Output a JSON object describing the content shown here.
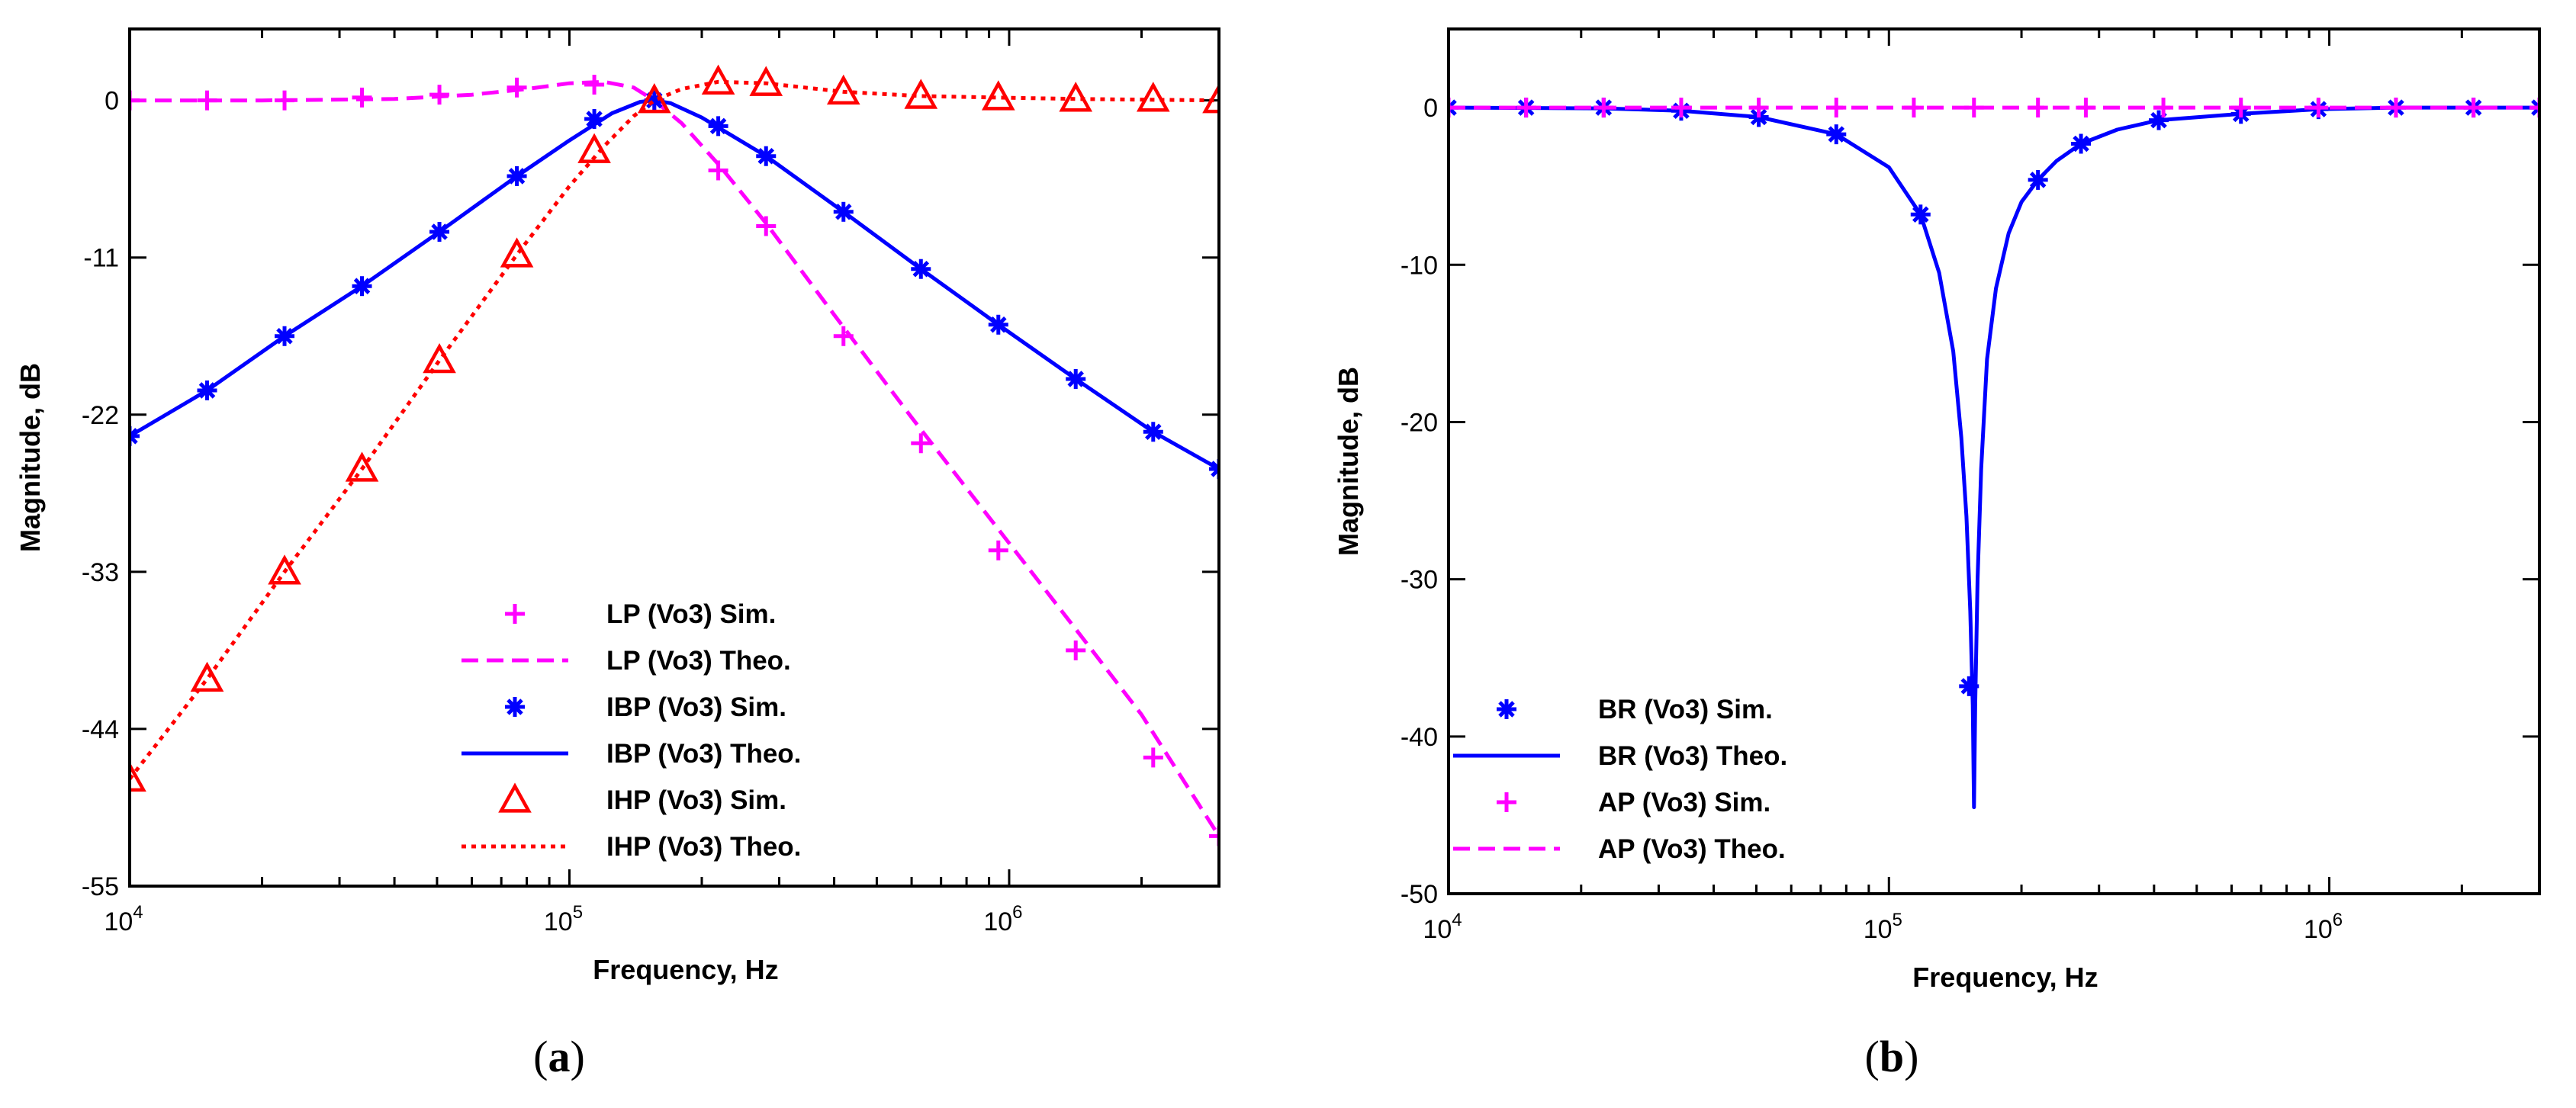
{
  "chart_data": [
    {
      "id": "a",
      "type": "line",
      "caption_letter": "a",
      "xlabel": "Frequency, Hz",
      "ylabel": "Magnitude, dB",
      "xscale": "log",
      "xlim": [
        10000,
        3000000
      ],
      "ylim": [
        -55,
        5
      ],
      "xticks": [
        {
          "value": 10000,
          "base": "10",
          "exp": "4"
        },
        {
          "value": 100000,
          "base": "10",
          "exp": "5"
        },
        {
          "value": 1000000,
          "base": "10",
          "exp": "6"
        }
      ],
      "yticks": [
        0,
        -11,
        -22,
        -33,
        -44,
        -55
      ],
      "ytick_labels": [
        "0",
        "-11",
        "-22",
        "-33",
        "-44",
        "-55"
      ],
      "legend_position": "bottom-center",
      "series": [
        {
          "name": "LP (Vo3) Sim.",
          "kind": "sim",
          "marker": "plus",
          "color": "#ff00ff",
          "x": [
            10000,
            15000,
            22500,
            33750,
            50625,
            75937,
            113906,
            156000,
            218000,
            280000,
            420000,
            630000,
            945000,
            1417000,
            2126000,
            3000000
          ],
          "y": [
            0,
            0,
            0,
            0.2,
            0.4,
            0.9,
            1.1,
            0,
            -4.9,
            -8.8,
            -16.5,
            -24,
            -31.5,
            -38.5,
            -46,
            -51.5
          ]
        },
        {
          "name": "LP (Vo3) Theo.",
          "kind": "theo",
          "style": "dashed",
          "color": "#ff00ff",
          "x": [
            10000,
            20000,
            40000,
            60000,
            80000,
            100000,
            120000,
            140000,
            156000,
            180000,
            220000,
            280000,
            400000,
            600000,
            1000000,
            1500000,
            2000000,
            3000000
          ],
          "y": [
            0,
            0,
            0.1,
            0.4,
            0.8,
            1.2,
            1.3,
            0.9,
            0,
            -1.6,
            -4.6,
            -8.6,
            -15,
            -22.2,
            -31,
            -38,
            -43,
            -51.5
          ]
        },
        {
          "name": "IBP (Vo3) Sim.",
          "kind": "sim",
          "marker": "star",
          "color": "#0000ff",
          "x": [
            10000,
            15000,
            22500,
            33750,
            50625,
            75937,
            113906,
            156000,
            218000,
            280000,
            420000,
            630000,
            945000,
            1417000,
            2126000,
            3000000
          ],
          "y": [
            -23.5,
            -20.3,
            -16.5,
            -13,
            -9.2,
            -5.3,
            -1.3,
            0,
            -1.8,
            -3.9,
            -7.8,
            -11.8,
            -15.7,
            -19.5,
            -23.2,
            -25.8
          ]
        },
        {
          "name": "IBP (Vo3) Theo.",
          "kind": "theo",
          "style": "solid",
          "color": "#0000ff",
          "x": [
            10000,
            15000,
            22500,
            33750,
            50625,
            75937,
            100000,
            125000,
            145000,
            156000,
            170000,
            200000,
            280000,
            420000,
            630000,
            945000,
            1417000,
            2126000,
            3000000
          ],
          "y": [
            -23.5,
            -20.3,
            -16.5,
            -13,
            -9.2,
            -5.3,
            -2.8,
            -0.9,
            -0.1,
            0,
            -0.2,
            -1.2,
            -3.9,
            -7.8,
            -11.8,
            -15.7,
            -19.5,
            -23.2,
            -25.8
          ]
        },
        {
          "name": "IHP (Vo3) Sim.",
          "kind": "sim",
          "marker": "triangle",
          "color": "#ff0000",
          "x": [
            10000,
            15000,
            22500,
            33750,
            50625,
            75937,
            113906,
            156000,
            218000,
            280000,
            420000,
            630000,
            945000,
            1417000,
            2126000,
            3000000
          ],
          "y": [
            -47.5,
            -40.5,
            -33,
            -25.8,
            -18.2,
            -10.8,
            -3.5,
            0,
            1.3,
            1.2,
            0.6,
            0.3,
            0.2,
            0.1,
            0.1,
            0
          ]
        },
        {
          "name": "IHP (Vo3) Theo.",
          "kind": "theo",
          "style": "dotted",
          "color": "#ff0000",
          "x": [
            10000,
            15000,
            22500,
            33750,
            50625,
            75937,
            100000,
            120000,
            140000,
            156000,
            180000,
            218000,
            280000,
            420000,
            630000,
            945000,
            1417000,
            3000000
          ],
          "y": [
            -47.5,
            -40.5,
            -33,
            -25.8,
            -18.2,
            -10.8,
            -6,
            -3.2,
            -1.1,
            0,
            0.8,
            1.3,
            1.2,
            0.6,
            0.3,
            0.2,
            0.1,
            0
          ]
        }
      ]
    },
    {
      "id": "b",
      "type": "line",
      "caption_letter": "b",
      "xlabel": "Frequency, Hz",
      "ylabel": "Magnitude, dB",
      "xscale": "log",
      "xlim": [
        10000,
        3000000
      ],
      "ylim": [
        -50,
        5
      ],
      "xticks": [
        {
          "value": 10000,
          "base": "10",
          "exp": "4"
        },
        {
          "value": 100000,
          "base": "10",
          "exp": "5"
        },
        {
          "value": 1000000,
          "base": "10",
          "exp": "6"
        }
      ],
      "yticks": [
        0,
        -10,
        -20,
        -30,
        -40,
        -50
      ],
      "ytick_labels": [
        "0",
        "-10",
        "-20",
        "-30",
        "-40",
        "-50"
      ],
      "legend_position": "bottom-left",
      "series": [
        {
          "name": "BR (Vo3) Sim.",
          "kind": "sim",
          "marker": "star",
          "color": "#0000ff",
          "x": [
            10000,
            15000,
            22500,
            33750,
            50625,
            75937,
            118000,
            152000,
            218000,
            273000,
            410000,
            630000,
            945000,
            1417000,
            2126000,
            3000000
          ],
          "y": [
            0,
            0,
            0,
            -0.2,
            -0.6,
            -1.7,
            -6.8,
            -36.8,
            -4.6,
            -2.3,
            -0.8,
            -0.4,
            -0.1,
            0,
            0,
            0
          ]
        },
        {
          "name": "BR (Vo3) Theo.",
          "kind": "theo",
          "style": "solid",
          "color": "#0000ff",
          "x": [
            10000,
            22500,
            33750,
            50625,
            75937,
            100000,
            118000,
            130000,
            140000,
            146000,
            150000,
            153000,
            155000,
            156000,
            157000,
            159000,
            162000,
            167000,
            175000,
            187000,
            200000,
            218000,
            240000,
            273000,
            330000,
            410000,
            630000,
            945000,
            1417000,
            3000000
          ],
          "y": [
            0,
            -0.05,
            -0.2,
            -0.6,
            -1.7,
            -3.8,
            -6.8,
            -10.5,
            -15.5,
            -21,
            -26,
            -32,
            -38,
            -44.5,
            -38,
            -30,
            -23,
            -16,
            -11.5,
            -8,
            -6,
            -4.6,
            -3.4,
            -2.3,
            -1.4,
            -0.8,
            -0.4,
            -0.1,
            0,
            0
          ]
        },
        {
          "name": "AP (Vo3) Sim.",
          "kind": "sim",
          "marker": "plus",
          "color": "#ff00ff",
          "x": [
            10000,
            15000,
            22500,
            33750,
            50625,
            75937,
            113906,
            156000,
            218000,
            280000,
            420000,
            630000,
            945000,
            1417000,
            2126000,
            3000000
          ],
          "y": [
            0,
            0,
            0,
            0,
            0,
            0,
            0,
            0,
            0,
            0,
            0,
            0,
            0,
            0,
            0,
            0
          ]
        },
        {
          "name": "AP (Vo3) Theo.",
          "kind": "theo",
          "style": "dashed",
          "color": "#ff00ff",
          "x": [
            10000,
            3000000
          ],
          "y": [
            0,
            0
          ]
        }
      ]
    }
  ]
}
